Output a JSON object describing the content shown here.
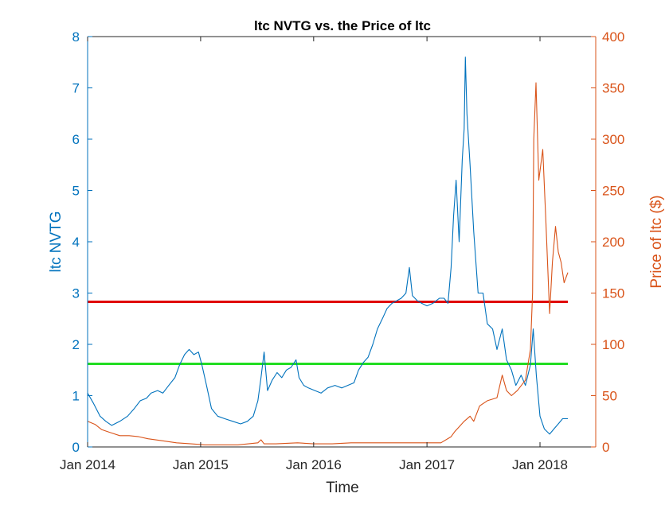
{
  "chart_data": {
    "type": "line",
    "title": "ltc NVTG vs. the Price of ltc",
    "xlabel": "Time",
    "ylabel_left": "ltc NVTG",
    "ylabel_right": "Price of ltc ($)",
    "x_range": [
      "2014-01-01",
      "2018-06-30"
    ],
    "x_ticks": [
      {
        "date": "2014-01-01",
        "label": "Jan 2014"
      },
      {
        "date": "2015-01-01",
        "label": "Jan 2015"
      },
      {
        "date": "2016-01-01",
        "label": "Jan 2016"
      },
      {
        "date": "2017-01-01",
        "label": "Jan 2017"
      },
      {
        "date": "2018-01-01",
        "label": "Jan 2018"
      }
    ],
    "ylim_left": [
      0,
      8
    ],
    "yticks_left": [
      "0",
      "1",
      "2",
      "3",
      "4",
      "5",
      "6",
      "7",
      "8"
    ],
    "ylim_right": [
      0,
      400
    ],
    "yticks_right": [
      "0",
      "50",
      "100",
      "150",
      "200",
      "250",
      "300",
      "350",
      "400"
    ],
    "grid": false,
    "series": [
      {
        "axis": "left",
        "color": "#0072bd",
        "points": [
          [
            "2014-01-01",
            1.05
          ],
          [
            "2014-01-20",
            0.85
          ],
          [
            "2014-02-10",
            0.6
          ],
          [
            "2014-03-01",
            0.5
          ],
          [
            "2014-03-20",
            0.42
          ],
          [
            "2014-04-15",
            0.5
          ],
          [
            "2014-05-10",
            0.6
          ],
          [
            "2014-06-01",
            0.75
          ],
          [
            "2014-06-20",
            0.9
          ],
          [
            "2014-07-10",
            0.95
          ],
          [
            "2014-07-25",
            1.05
          ],
          [
            "2014-08-15",
            1.1
          ],
          [
            "2014-09-01",
            1.05
          ],
          [
            "2014-09-20",
            1.2
          ],
          [
            "2014-10-10",
            1.35
          ],
          [
            "2014-10-25",
            1.6
          ],
          [
            "2014-11-10",
            1.8
          ],
          [
            "2014-11-25",
            1.9
          ],
          [
            "2014-12-10",
            1.8
          ],
          [
            "2014-12-25",
            1.85
          ],
          [
            "2015-01-05",
            1.6
          ],
          [
            "2015-01-20",
            1.2
          ],
          [
            "2015-02-05",
            0.75
          ],
          [
            "2015-02-25",
            0.6
          ],
          [
            "2015-03-20",
            0.55
          ],
          [
            "2015-04-15",
            0.5
          ],
          [
            "2015-05-10",
            0.45
          ],
          [
            "2015-06-01",
            0.5
          ],
          [
            "2015-06-20",
            0.6
          ],
          [
            "2015-07-05",
            0.9
          ],
          [
            "2015-07-15",
            1.35
          ],
          [
            "2015-07-25",
            1.85
          ],
          [
            "2015-08-05",
            1.1
          ],
          [
            "2015-08-20",
            1.3
          ],
          [
            "2015-09-05",
            1.45
          ],
          [
            "2015-09-20",
            1.35
          ],
          [
            "2015-10-05",
            1.5
          ],
          [
            "2015-10-20",
            1.55
          ],
          [
            "2015-11-05",
            1.7
          ],
          [
            "2015-11-15",
            1.35
          ],
          [
            "2015-11-30",
            1.2
          ],
          [
            "2015-12-15",
            1.15
          ],
          [
            "2016-01-05",
            1.1
          ],
          [
            "2016-01-25",
            1.05
          ],
          [
            "2016-02-15",
            1.15
          ],
          [
            "2016-03-10",
            1.2
          ],
          [
            "2016-04-01",
            1.15
          ],
          [
            "2016-04-20",
            1.2
          ],
          [
            "2016-05-10",
            1.25
          ],
          [
            "2016-05-25",
            1.5
          ],
          [
            "2016-06-10",
            1.65
          ],
          [
            "2016-06-25",
            1.75
          ],
          [
            "2016-07-10",
            2.0
          ],
          [
            "2016-07-25",
            2.3
          ],
          [
            "2016-08-10",
            2.5
          ],
          [
            "2016-08-25",
            2.7
          ],
          [
            "2016-09-10",
            2.8
          ],
          [
            "2016-09-25",
            2.85
          ],
          [
            "2016-10-10",
            2.9
          ],
          [
            "2016-10-25",
            3.0
          ],
          [
            "2016-11-05",
            3.5
          ],
          [
            "2016-11-15",
            2.95
          ],
          [
            "2016-12-01",
            2.85
          ],
          [
            "2016-12-15",
            2.8
          ],
          [
            "2017-01-01",
            2.75
          ],
          [
            "2017-01-20",
            2.8
          ],
          [
            "2017-02-10",
            2.9
          ],
          [
            "2017-02-25",
            2.9
          ],
          [
            "2017-03-10",
            2.8
          ],
          [
            "2017-03-20",
            3.5
          ],
          [
            "2017-03-28",
            4.5
          ],
          [
            "2017-04-05",
            5.2
          ],
          [
            "2017-04-15",
            4.0
          ],
          [
            "2017-04-25",
            5.6
          ],
          [
            "2017-05-01",
            6.2
          ],
          [
            "2017-05-05",
            7.6
          ],
          [
            "2017-05-10",
            6.5
          ],
          [
            "2017-05-20",
            5.5
          ],
          [
            "2017-06-01",
            4.2
          ],
          [
            "2017-06-15",
            3.0
          ],
          [
            "2017-07-01",
            3.0
          ],
          [
            "2017-07-15",
            2.4
          ],
          [
            "2017-08-01",
            2.3
          ],
          [
            "2017-08-15",
            1.9
          ],
          [
            "2017-09-01",
            2.3
          ],
          [
            "2017-09-15",
            1.7
          ],
          [
            "2017-10-01",
            1.5
          ],
          [
            "2017-10-15",
            1.2
          ],
          [
            "2017-11-01",
            1.4
          ],
          [
            "2017-11-15",
            1.2
          ],
          [
            "2017-12-01",
            1.6
          ],
          [
            "2017-12-10",
            2.3
          ],
          [
            "2017-12-20",
            1.4
          ],
          [
            "2018-01-01",
            0.6
          ],
          [
            "2018-01-15",
            0.35
          ],
          [
            "2018-02-01",
            0.25
          ],
          [
            "2018-02-15",
            0.35
          ],
          [
            "2018-03-01",
            0.45
          ],
          [
            "2018-03-15",
            0.55
          ],
          [
            "2018-04-01",
            0.55
          ]
        ]
      },
      {
        "axis": "right",
        "color": "#d95319",
        "points": [
          [
            "2014-01-01",
            25
          ],
          [
            "2014-01-25",
            22
          ],
          [
            "2014-02-15",
            17
          ],
          [
            "2014-03-15",
            14
          ],
          [
            "2014-04-15",
            11
          ],
          [
            "2014-05-15",
            11
          ],
          [
            "2014-06-15",
            10
          ],
          [
            "2014-07-15",
            8
          ],
          [
            "2014-09-01",
            6
          ],
          [
            "2014-10-15",
            4
          ],
          [
            "2014-12-01",
            3
          ],
          [
            "2015-01-15",
            2
          ],
          [
            "2015-03-01",
            2
          ],
          [
            "2015-05-01",
            2
          ],
          [
            "2015-07-05",
            4
          ],
          [
            "2015-07-15",
            7
          ],
          [
            "2015-07-25",
            3
          ],
          [
            "2015-09-01",
            3
          ],
          [
            "2015-11-10",
            4
          ],
          [
            "2016-01-01",
            3
          ],
          [
            "2016-03-01",
            3
          ],
          [
            "2016-05-01",
            4
          ],
          [
            "2016-07-01",
            4
          ],
          [
            "2016-09-01",
            4
          ],
          [
            "2016-11-01",
            4
          ],
          [
            "2017-01-01",
            4
          ],
          [
            "2017-02-15",
            4
          ],
          [
            "2017-03-20",
            10
          ],
          [
            "2017-04-01",
            15
          ],
          [
            "2017-05-01",
            25
          ],
          [
            "2017-05-20",
            30
          ],
          [
            "2017-06-01",
            25
          ],
          [
            "2017-06-20",
            40
          ],
          [
            "2017-07-15",
            45
          ],
          [
            "2017-08-15",
            48
          ],
          [
            "2017-09-01",
            70
          ],
          [
            "2017-09-15",
            55
          ],
          [
            "2017-10-01",
            50
          ],
          [
            "2017-10-20",
            55
          ],
          [
            "2017-11-15",
            65
          ],
          [
            "2017-12-01",
            95
          ],
          [
            "2017-12-08",
            150
          ],
          [
            "2017-12-12",
            300
          ],
          [
            "2017-12-19",
            355
          ],
          [
            "2017-12-28",
            260
          ],
          [
            "2018-01-10",
            290
          ],
          [
            "2018-01-20",
            220
          ],
          [
            "2018-02-01",
            130
          ],
          [
            "2018-02-10",
            180
          ],
          [
            "2018-02-20",
            215
          ],
          [
            "2018-03-01",
            190
          ],
          [
            "2018-03-10",
            180
          ],
          [
            "2018-03-20",
            160
          ],
          [
            "2018-04-01",
            170
          ]
        ]
      }
    ],
    "reference_lines": [
      {
        "axis": "left",
        "value": 2.83,
        "color": "#e00000"
      },
      {
        "axis": "left",
        "value": 1.62,
        "color": "#22dd22"
      }
    ]
  }
}
